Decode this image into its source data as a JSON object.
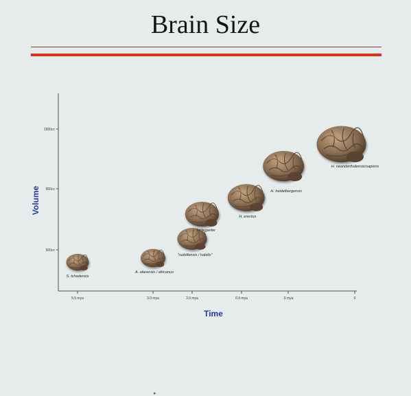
{
  "slide": {
    "title": "Brain Size"
  },
  "chart_data": {
    "type": "scatter",
    "xlabel": "Time",
    "ylabel": "Volume",
    "x_tick_labels": [
      "5.5 mya",
      "3.0 mya",
      "2.0 mya",
      "0.9 mya",
      ".5 mya",
      "0"
    ],
    "y_tick_labels": [
      "500cc",
      "900cc",
      "1500cc"
    ],
    "points": [
      {
        "label": "S. tchadensis",
        "x_tick": 0,
        "size": 0.55
      },
      {
        "label": "A. afarensis / africanus",
        "x_tick": 1,
        "size": 0.6
      },
      {
        "label": "\"rudolfensis / habilis\"",
        "x_tick": 2,
        "size": 0.72
      },
      {
        "label": "H. ergaster",
        "x_tick": 2.2,
        "size": 0.82
      },
      {
        "label": "H. erectus",
        "x_tick": 3.1,
        "size": 0.9
      },
      {
        "label": "H. heidelbergensis",
        "x_tick": 3.9,
        "size": 1.0
      },
      {
        "label": "H. neanderthalensis/sapiens",
        "x_tick": 4.8,
        "size": 1.2
      }
    ],
    "colors": {
      "axis": "#555555",
      "axis_title": "#2438a8",
      "brain_dark": "#5a4330",
      "brain_mid": "#8c7055",
      "brain_light": "#b89a78"
    }
  }
}
